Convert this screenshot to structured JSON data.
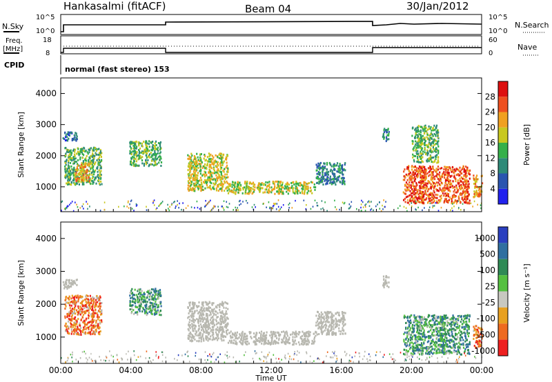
{
  "header": {
    "radar": "Hankasalmi (fitACF)",
    "beam": "Beam 04",
    "date": "30/Jan/2012"
  },
  "strip1": {
    "left_label": "N.Sky",
    "right_label": "N.Search",
    "left_ticks": [
      "10^5",
      "10^0"
    ],
    "right_ticks": [
      "10^5",
      "10^0"
    ]
  },
  "strip2": {
    "left_label_1": "Freq.",
    "left_label_2": "[MHz]",
    "right_label": "Nave",
    "left_ticks": [
      "18",
      "8"
    ],
    "right_ticks": [
      "60",
      "0"
    ]
  },
  "cpid": {
    "label": "CPID",
    "text": "normal (fast stereo) 153"
  },
  "colors": {
    "power_scale": [
      "#2222ee",
      "#2a55b0",
      "#2e8a78",
      "#35b04a",
      "#c8c820",
      "#f0a020",
      "#ee5020",
      "#dd1010"
    ],
    "velocity_scale": [
      "#2a3fbf",
      "#2f6fa0",
      "#2f8a55",
      "#55c040",
      "#c8c8c0",
      "#e8a020",
      "#ee6a20",
      "#ee2020"
    ],
    "ground_scatter": "#b8b8b0"
  },
  "chart_data": [
    {
      "type": "heatmap",
      "title": "Power",
      "ylabel": "Slant Range [km]",
      "ylim": [
        200,
        4500
      ],
      "yticks": [
        "1000",
        "2000",
        "3000",
        "4000"
      ],
      "xlim_hours": [
        0,
        24
      ],
      "colorbar": {
        "label": "Power [dB]",
        "ticks": [
          "4",
          "8",
          "12",
          "16",
          "20",
          "24",
          "28"
        ],
        "range": [
          0,
          30
        ]
      },
      "regions": [
        {
          "t0": 0.2,
          "t1": 2.3,
          "r0": 1100,
          "r1": 2300,
          "level": 3
        },
        {
          "t0": 0.8,
          "t1": 1.6,
          "r0": 1200,
          "r1": 1800,
          "level": 5
        },
        {
          "t0": 0.1,
          "t1": 0.9,
          "r0": 2500,
          "r1": 2800,
          "level": 1
        },
        {
          "t0": 3.9,
          "t1": 5.7,
          "r0": 1700,
          "r1": 2500,
          "level": 3
        },
        {
          "t0": 7.2,
          "t1": 9.5,
          "r0": 900,
          "r1": 2100,
          "level": 4
        },
        {
          "t0": 9.5,
          "t1": 14.5,
          "r0": 800,
          "r1": 1200,
          "level": 4
        },
        {
          "t0": 14.5,
          "t1": 16.2,
          "r0": 1100,
          "r1": 1800,
          "level": 2
        },
        {
          "t0": 18.3,
          "t1": 18.7,
          "r0": 2500,
          "r1": 2900,
          "level": 2
        },
        {
          "t0": 19.5,
          "t1": 23.3,
          "r0": 500,
          "r1": 1700,
          "level": 6
        },
        {
          "t0": 20.0,
          "t1": 21.5,
          "r0": 1800,
          "r1": 3000,
          "level": 3
        },
        {
          "t0": 23.5,
          "t1": 24.0,
          "r0": 700,
          "r1": 1400,
          "level": 5
        }
      ]
    },
    {
      "type": "heatmap",
      "title": "Velocity",
      "ylabel": "Slant Range [km]",
      "ylim": [
        200,
        4500
      ],
      "yticks": [
        "1000",
        "2000",
        "3000",
        "4000"
      ],
      "xlim_hours": [
        0,
        24
      ],
      "xticks": [
        "00:00",
        "04:00",
        "08:00",
        "12:00",
        "16:00",
        "20:00",
        "00:00"
      ],
      "xlabel": "Time UT",
      "colorbar": {
        "label": "Velocity [m s⁻¹]",
        "ticks": [
          "1000",
          "500",
          "100",
          "25",
          "-25",
          "-100",
          "-500",
          "-1000"
        ]
      },
      "regions": [
        {
          "t0": 0.2,
          "t1": 2.3,
          "r0": 1100,
          "r1": 2300,
          "class": "neg"
        },
        {
          "t0": 0.1,
          "t1": 0.9,
          "r0": 2500,
          "r1": 2800,
          "class": "gs"
        },
        {
          "t0": 3.9,
          "t1": 5.7,
          "r0": 1700,
          "r1": 2500,
          "class": "pos"
        },
        {
          "t0": 7.2,
          "t1": 9.5,
          "r0": 900,
          "r1": 2100,
          "class": "gs"
        },
        {
          "t0": 9.5,
          "t1": 14.5,
          "r0": 800,
          "r1": 1200,
          "class": "gs"
        },
        {
          "t0": 14.5,
          "t1": 16.2,
          "r0": 1100,
          "r1": 1800,
          "class": "gs"
        },
        {
          "t0": 18.3,
          "t1": 18.7,
          "r0": 2500,
          "r1": 2900,
          "class": "gs"
        },
        {
          "t0": 19.5,
          "t1": 23.3,
          "r0": 500,
          "r1": 1700,
          "class": "pos"
        },
        {
          "t0": 23.5,
          "t1": 24.0,
          "r0": 700,
          "r1": 1400,
          "class": "neg"
        }
      ]
    }
  ]
}
